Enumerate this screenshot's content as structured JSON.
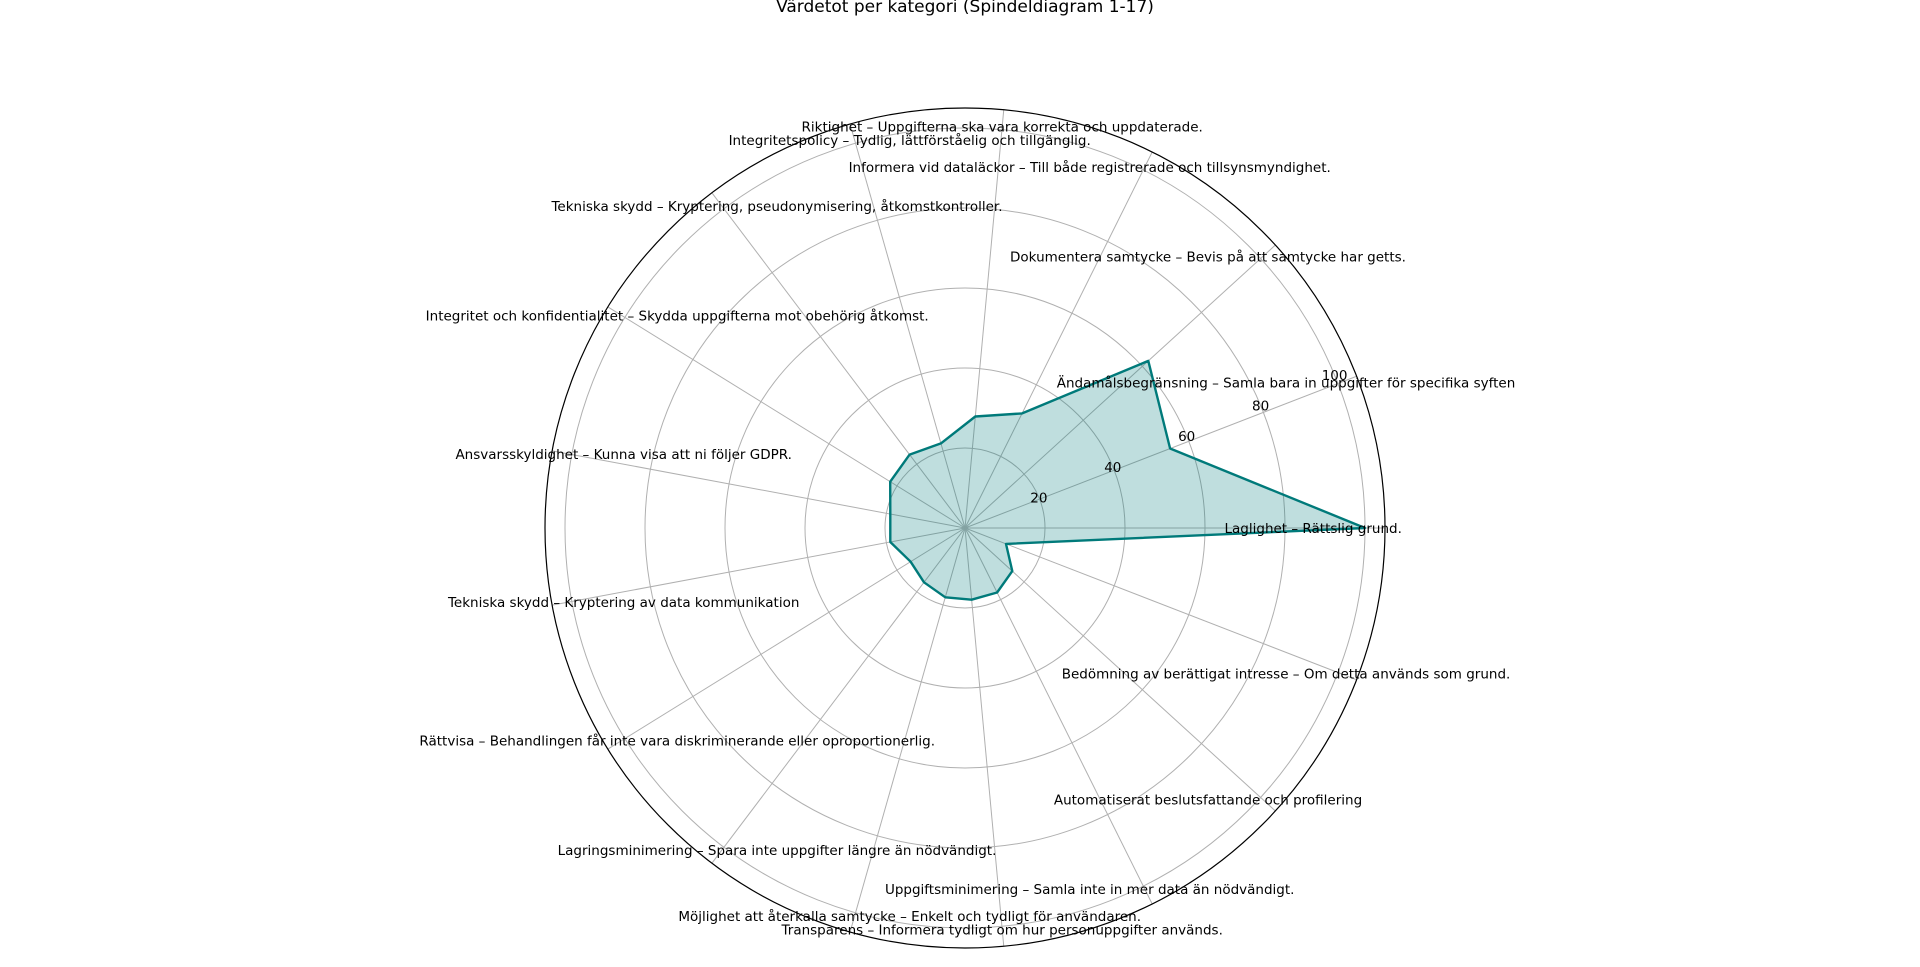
{
  "colors": {
    "series_line": "#007a7a",
    "series_fill": "#007a7a",
    "grid": "#b0b0b0",
    "frame": "#000000"
  },
  "chart_data": {
    "type": "radar",
    "title": "Värdetot per kategori (Spindeldiagram 1-17)",
    "categories": [
      "Laglighet –  Rättslig grund.",
      "Ändamålsbegränsning – Samla bara in uppgifter för specifika syften",
      "Dokumentera samtycke – Bevis på att samtycke har getts.",
      "Informera vid dataläckor – Till både registrerade och tillsynsmyndighet.",
      "Riktighet – Uppgifterna ska vara korrekta och uppdaterade.",
      "Integritetspolicy – Tydlig, lättförståelig och tillgänglig.",
      "Tekniska skydd – Kryptering, pseudonymisering, åtkomstkontroller.",
      "Integritet och konfidentialitet – Skydda uppgifterna mot obehörig åtkomst.",
      "Ansvarsskyldighet – Kunna visa att ni följer GDPR.",
      "Tekniska skydd – Kryptering av data kommunikation",
      "Rättvisa – Behandlingen får inte vara diskriminerande eller oproportionerlig.",
      "Lagringsminimering – Spara inte uppgifter längre än nödvändigt.",
      "Möjlighet att återkalla samtycke – Enkelt och tydligt för användaren.",
      "Transparens – Informera tydligt om hur personuppgifter används.",
      "Uppgiftsminimering – Samla inte in mer data än nödvändigt.",
      "Automatiserat beslutsfattande och profilering",
      "Bedömning av berättigat intresse – Om detta används som grund."
    ],
    "series": [
      {
        "values": [
          100,
          55,
          62,
          32,
          28,
          22,
          23,
          22,
          19,
          19,
          16,
          17,
          18,
          18,
          18,
          16,
          11
        ]
      }
    ],
    "rlim": [
      0,
      105
    ],
    "rticks": [
      "20",
      "40",
      "60",
      "80",
      "100"
    ],
    "rtick_values": [
      20,
      40,
      60,
      80,
      100
    ],
    "grid": true
  }
}
